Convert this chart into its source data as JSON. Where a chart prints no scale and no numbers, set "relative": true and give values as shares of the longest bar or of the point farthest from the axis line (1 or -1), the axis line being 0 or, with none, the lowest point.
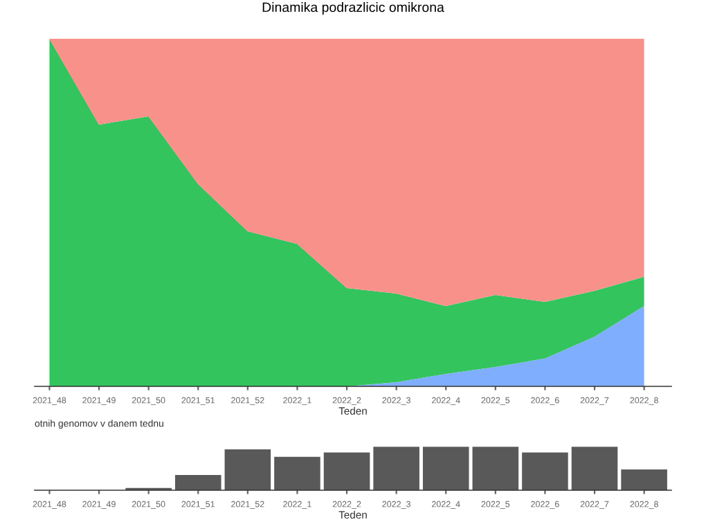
{
  "chart_data": [
    {
      "type": "area",
      "title": "Dinamika podrazlicic omikrona",
      "xlabel": "Teden",
      "relative": true,
      "stacked": true,
      "grid": false,
      "legend": false,
      "categories": [
        "2021_48",
        "2021_49",
        "2021_50",
        "2021_51",
        "2021_52",
        "2022_1",
        "2022_2",
        "2022_3",
        "2022_4",
        "2022_5",
        "2022_6",
        "2022_7",
        "2022_8"
      ],
      "series": [
        {
          "color": "#80aeff",
          "values": [
            0,
            0,
            0,
            0,
            0,
            0,
            0,
            0.012,
            0.036,
            0.056,
            0.08,
            0.143,
            0.231
          ]
        },
        {
          "color": "#33c45e",
          "values": [
            1.0,
            0.753,
            0.777,
            0.582,
            0.446,
            0.41,
            0.283,
            0.255,
            0.195,
            0.207,
            0.163,
            0.132,
            0.084
          ]
        },
        {
          "color": "#f8918a",
          "values": [
            0,
            0.247,
            0.223,
            0.418,
            0.554,
            0.59,
            0.717,
            0.733,
            0.769,
            0.737,
            0.757,
            0.725,
            0.685
          ]
        }
      ]
    },
    {
      "type": "bar",
      "title": "otnih genomov v danem tednu",
      "xlabel": "Teden",
      "relative": true,
      "grid": false,
      "categories": [
        "2021_48",
        "2021_49",
        "2021_50",
        "2021_51",
        "2021_52",
        "2022_1",
        "2022_2",
        "2022_3",
        "2022_4",
        "2022_5",
        "2022_6",
        "2022_7",
        "2022_8"
      ],
      "values": [
        0,
        0,
        0.05,
        0.35,
        0.94,
        0.77,
        0.87,
        1,
        1,
        1,
        0.87,
        1,
        0.48
      ],
      "color": "#595959"
    }
  ]
}
